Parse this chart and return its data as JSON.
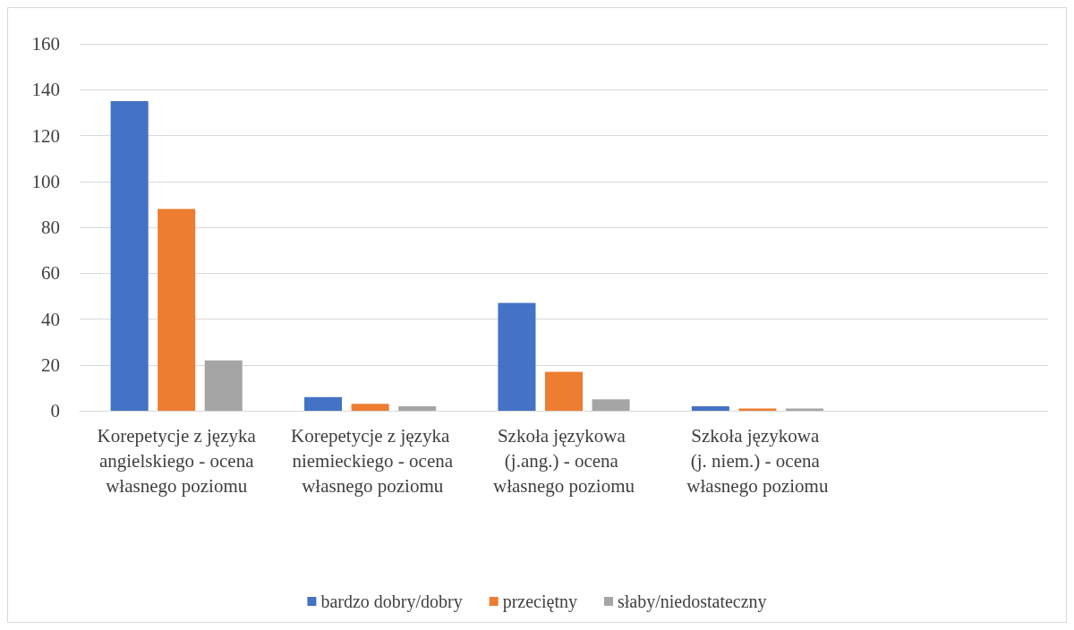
{
  "chart_data": {
    "type": "bar",
    "categories": [
      "Korepetycje z języka angielskiego - ocena własnego poziomu",
      "Korepetycje z języka niemieckiego - ocena własnego poziomu",
      "Szkoła językowa (j.ang.) - ocena własnego poziomu",
      "Szkoła językowa (j. niem.) - ocena własnego poziomu",
      null
    ],
    "series": [
      {
        "name": "bardzo dobry/dobry",
        "color": "#4472c4",
        "values": [
          135,
          6,
          47,
          2,
          null
        ]
      },
      {
        "name": "przeciętny",
        "color": "#ed7d31",
        "values": [
          88,
          3,
          17,
          1,
          null
        ]
      },
      {
        "name": "słaby/niedostateczny",
        "color": "#a5a5a5",
        "values": [
          22,
          2,
          5,
          1,
          null
        ]
      }
    ],
    "ylim": [
      0,
      160
    ],
    "yticks": [
      0,
      20,
      40,
      60,
      80,
      100,
      120,
      140,
      160
    ],
    "grid": "y",
    "legend": "bottom"
  }
}
